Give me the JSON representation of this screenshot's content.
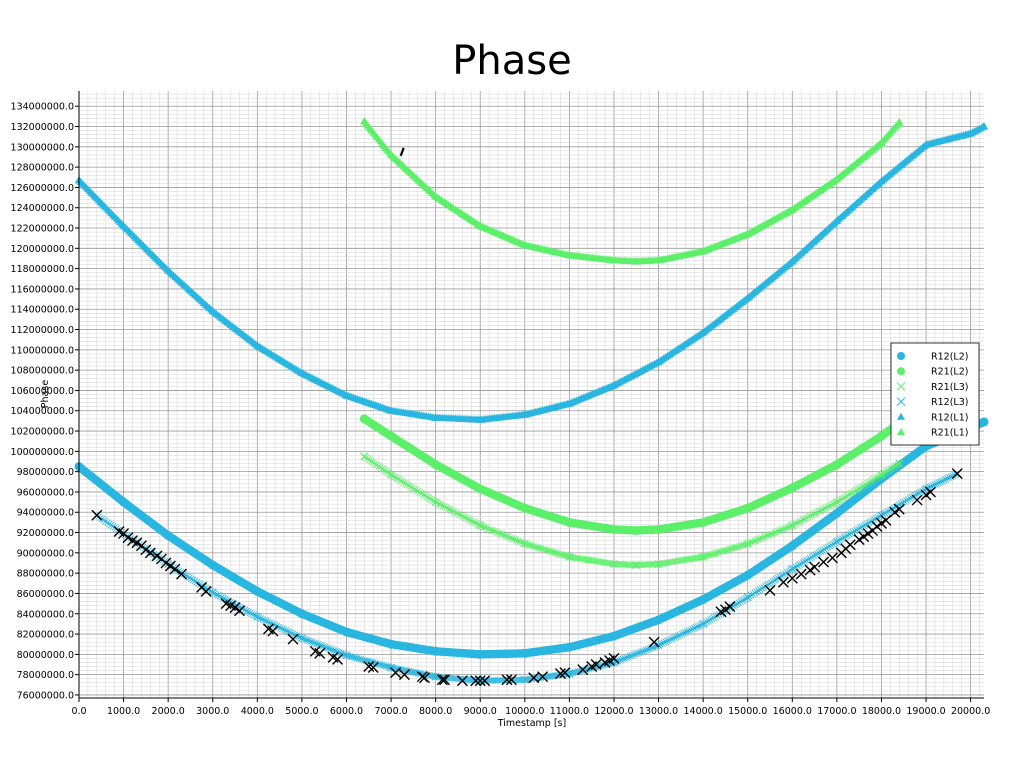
{
  "chart_data": {
    "type": "scatter",
    "title": "Phase",
    "xlabel": "Timestamp [s]",
    "ylabel": "Phase",
    "xlim": [
      0,
      20300
    ],
    "ylim": [
      75700000,
      135500000
    ],
    "grid": true,
    "legend_position": "right",
    "x_ticks": [
      0,
      1000,
      2000,
      3000,
      4000,
      5000,
      6000,
      7000,
      8000,
      9000,
      10000,
      11000,
      12000,
      13000,
      14000,
      15000,
      16000,
      17000,
      18000,
      19000,
      20000
    ],
    "x_tick_labels": [
      "0.0",
      "1000.0",
      "2000.0",
      "3000.0",
      "4000.0",
      "5000.0",
      "6000.0",
      "7000.0",
      "8000.0",
      "9000.0",
      "10000.0",
      "11000.0",
      "12000.0",
      "13000.0",
      "14000.0",
      "15000.0",
      "16000.0",
      "17000.0",
      "18000.0",
      "19000.0",
      "20000.0"
    ],
    "y_ticks": [
      76000000,
      78000000,
      80000000,
      82000000,
      84000000,
      86000000,
      88000000,
      90000000,
      92000000,
      94000000,
      96000000,
      98000000,
      100000000,
      102000000,
      104000000,
      106000000,
      108000000,
      110000000,
      112000000,
      114000000,
      116000000,
      118000000,
      120000000,
      122000000,
      124000000,
      126000000,
      128000000,
      130000000,
      132000000,
      134000000
    ],
    "y_tick_labels": [
      "76000000.0",
      "78000000.0",
      "80000000.0",
      "82000000.0",
      "84000000.0",
      "86000000.0",
      "88000000.0",
      "90000000.0",
      "92000000.0",
      "94000000.0",
      "96000000.0",
      "98000000.0",
      "100000000.0",
      "102000000.0",
      "104000000.0",
      "106000000.0",
      "108000000.0",
      "110000000.0",
      "112000000.0",
      "114000000.0",
      "116000000.0",
      "118000000.0",
      "120000000.0",
      "122000000.0",
      "124000000.0",
      "126000000.0",
      "128000000.0",
      "130000000.0",
      "132000000.0",
      "134000000.0"
    ],
    "series": [
      {
        "name": "R12(L2)",
        "marker": "circle",
        "color": "#29b6e0",
        "x": [
          0,
          1000,
          2000,
          3000,
          4000,
          5000,
          6000,
          7000,
          8000,
          9000,
          10000,
          11000,
          12000,
          13000,
          14000,
          15000,
          16000,
          17000,
          18000,
          19000,
          20000,
          20300
        ],
        "y": [
          98500000,
          95000000,
          91700000,
          88800000,
          86200000,
          84000000,
          82200000,
          81000000,
          80300000,
          80000000,
          80100000,
          80700000,
          81800000,
          83400000,
          85400000,
          87800000,
          90700000,
          93900000,
          97300000,
          100500000,
          102300000,
          102900000
        ]
      },
      {
        "name": "R21(L2)",
        "marker": "circle",
        "color": "#5cf06a",
        "x": [
          6400,
          7000,
          8000,
          9000,
          10000,
          11000,
          12000,
          12500,
          13000,
          14000,
          15000,
          16000,
          17000,
          18000,
          18400
        ],
        "y": [
          103200000,
          101500000,
          98700000,
          96300000,
          94400000,
          93000000,
          92300000,
          92200000,
          92300000,
          93000000,
          94400000,
          96400000,
          98700000,
          101500000,
          102800000
        ]
      },
      {
        "name": "R21(L3)",
        "marker": "x",
        "color": "#5cf06a",
        "x": [
          6400,
          7000,
          8000,
          9000,
          10000,
          11000,
          12000,
          12500,
          13000,
          14000,
          15000,
          16000,
          17000,
          18000,
          18400
        ],
        "y": [
          99500000,
          97700000,
          95000000,
          92700000,
          90900000,
          89600000,
          88900000,
          88800000,
          88900000,
          89600000,
          90900000,
          92700000,
          95000000,
          97700000,
          98800000
        ]
      },
      {
        "name": "R12(L3)",
        "marker": "x",
        "color": "#29b6e0",
        "x": [
          400,
          1000,
          2000,
          3000,
          4000,
          5000,
          6000,
          7000,
          8000,
          9000,
          10000,
          11000,
          12000,
          13000,
          14000,
          15000,
          16000,
          17000,
          18000,
          19000,
          19700
        ],
        "y": [
          93700000,
          91900000,
          88900000,
          86100000,
          83700000,
          81600000,
          79900000,
          78700000,
          77800000,
          77400000,
          77500000,
          78100000,
          79200000,
          80900000,
          83000000,
          85600000,
          88400000,
          91100000,
          93700000,
          96300000,
          97800000
        ]
      },
      {
        "name": "R12(L1)",
        "marker": "triangle",
        "color": "#29b6e0",
        "x": [
          0,
          1000,
          2000,
          3000,
          4000,
          5000,
          6000,
          7000,
          8000,
          9000,
          10000,
          11000,
          12000,
          13000,
          14000,
          15000,
          16000,
          17000,
          18000,
          19000,
          20000,
          20300
        ],
        "y": [
          126700000,
          122200000,
          117800000,
          113800000,
          110400000,
          107700000,
          105500000,
          104000000,
          103300000,
          103100000,
          103600000,
          104700000,
          106500000,
          108800000,
          111700000,
          115100000,
          118700000,
          122700000,
          126600000,
          130200000,
          131300000,
          132000000
        ]
      },
      {
        "name": "R21(L1)",
        "marker": "triangle",
        "color": "#5cf06a",
        "x": [
          6400,
          7000,
          8000,
          9000,
          10000,
          11000,
          12000,
          12500,
          13000,
          14000,
          15000,
          16000,
          17000,
          18000,
          18400
        ],
        "y": [
          132500000,
          129200000,
          125100000,
          122200000,
          120300000,
          119300000,
          118800000,
          118700000,
          118800000,
          119700000,
          121400000,
          123800000,
          126800000,
          130400000,
          132400000
        ]
      }
    ],
    "outliers": {
      "marker": "x",
      "color": "#000000",
      "x": [
        400,
        900,
        1000,
        1100,
        1200,
        1300,
        1400,
        1500,
        1600,
        1750,
        1850,
        1950,
        2050,
        2150,
        2300,
        2750,
        2850,
        3300,
        3400,
        3500,
        3600,
        4250,
        4350,
        4800,
        5300,
        5400,
        5700,
        5800,
        6500,
        6600,
        7100,
        7300,
        7700,
        7750,
        8150,
        8200,
        8600,
        8900,
        9000,
        9100,
        9600,
        9700,
        10200,
        10400,
        10800,
        10900,
        11300,
        11500,
        11600,
        11800,
        11900,
        12000,
        12900,
        14400,
        14500,
        14600,
        15500,
        15800,
        16000,
        16200,
        16400,
        16500,
        16700,
        16900,
        17100,
        17200,
        17300,
        17500,
        17600,
        17700,
        17800,
        17900,
        18000,
        18100,
        18300,
        18400,
        18800,
        19000,
        19100,
        19700
      ],
      "y": [
        93700000,
        92100000,
        91900000,
        91500000,
        91200000,
        91000000,
        90700000,
        90300000,
        90000000,
        89700000,
        89400000,
        89000000,
        88700000,
        88400000,
        87900000,
        86600000,
        86200000,
        85000000,
        84800000,
        84600000,
        84300000,
        82500000,
        82300000,
        81500000,
        80300000,
        80100000,
        79700000,
        79500000,
        78800000,
        78700000,
        78200000,
        78000000,
        77800000,
        77700000,
        77500000,
        77500000,
        77400000,
        77400000,
        77400000,
        77400000,
        77500000,
        77500000,
        77700000,
        77800000,
        78100000,
        78200000,
        78500000,
        78800000,
        79000000,
        79200000,
        79400000,
        79600000,
        81200000,
        84200000,
        84400000,
        84700000,
        86300000,
        87100000,
        87500000,
        87900000,
        88300000,
        88600000,
        89100000,
        89500000,
        90000000,
        90400000,
        90800000,
        91300000,
        91600000,
        91900000,
        92200000,
        92600000,
        92900000,
        93200000,
        94000000,
        94300000,
        95200000,
        95700000,
        96000000,
        97800000
      ]
    },
    "stray_mark": {
      "x": 7250,
      "y": 129500000,
      "color": "#000000"
    }
  }
}
